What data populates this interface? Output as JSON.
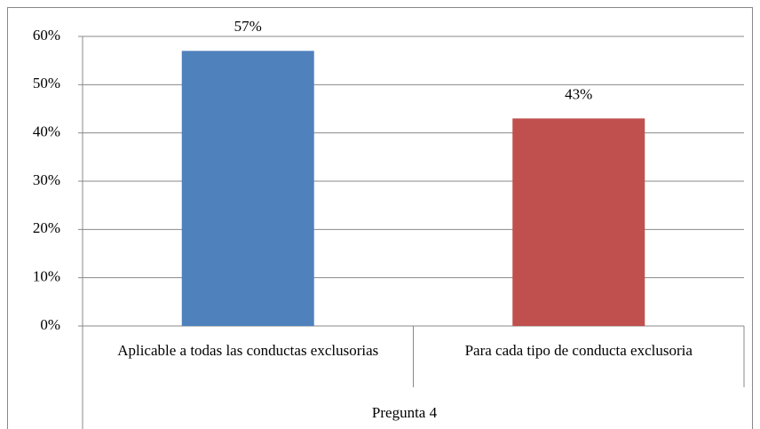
{
  "chart_data": {
    "type": "bar",
    "categories": [
      "Aplicable a todas las conductas exclusorias",
      "Para cada tipo de conducta exclusoria"
    ],
    "values": [
      57,
      43
    ],
    "value_labels": [
      "57%",
      "43%"
    ],
    "colors": [
      "#4f81bd",
      "#c0504d"
    ],
    "xlabel": "Pregunta 4",
    "ylim": [
      0,
      60
    ],
    "yticks": [
      {
        "value": 0,
        "label": "0%"
      },
      {
        "value": 10,
        "label": "10%"
      },
      {
        "value": 20,
        "label": "20%"
      },
      {
        "value": 30,
        "label": "30%"
      },
      {
        "value": 40,
        "label": "40%"
      },
      {
        "value": 50,
        "label": "50%"
      },
      {
        "value": 60,
        "label": "60%"
      }
    ],
    "grid": true
  }
}
